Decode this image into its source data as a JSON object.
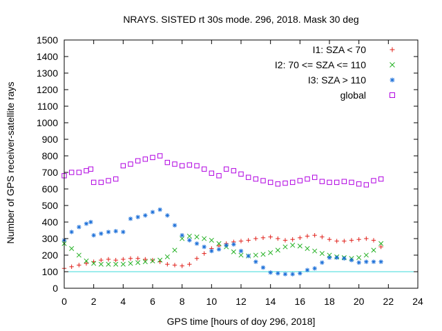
{
  "chart_data": {
    "type": "scatter",
    "title": "NRAYS. SISTED rt 30s mode. 296, 2018. Mask 30 deg",
    "xlabel": "GPS time [hours of doy 296, 2018]",
    "ylabel": "Number of GPS receiver-satellite rays",
    "xlim": [
      0,
      24
    ],
    "ylim": [
      0,
      1500
    ],
    "x_ticks": [
      0,
      2,
      4,
      6,
      8,
      10,
      12,
      14,
      16,
      18,
      20,
      22,
      24
    ],
    "y_ticks": [
      0,
      100,
      200,
      300,
      400,
      500,
      600,
      700,
      800,
      900,
      1000,
      1100,
      1200,
      1300,
      1400,
      1500
    ],
    "legend_position": "top-right",
    "reference_line": {
      "y": 100,
      "color": "#3ad9d9"
    },
    "series": [
      {
        "name": "I1: SZA < 70",
        "marker": "plus",
        "color": "#e0201a",
        "x": [
          0.0,
          0.5,
          1.0,
          1.5,
          2.0,
          2.5,
          3.0,
          3.5,
          4.0,
          4.5,
          5.0,
          5.5,
          6.0,
          6.5,
          7.0,
          7.5,
          8.0,
          8.5,
          9.0,
          9.5,
          10.0,
          10.5,
          11.0,
          11.5,
          12.0,
          12.5,
          13.0,
          13.5,
          14.0,
          14.5,
          15.0,
          15.5,
          16.0,
          16.5,
          17.0,
          17.5,
          18.0,
          18.5,
          19.0,
          19.5,
          20.0,
          20.5,
          21.0,
          21.5
        ],
        "y": [
          120,
          130,
          140,
          150,
          160,
          170,
          175,
          170,
          175,
          180,
          180,
          175,
          170,
          160,
          145,
          140,
          135,
          145,
          180,
          210,
          240,
          255,
          270,
          280,
          285,
          290,
          300,
          305,
          310,
          300,
          290,
          295,
          305,
          315,
          320,
          310,
          295,
          285,
          285,
          290,
          295,
          300,
          290,
          250
        ]
      },
      {
        "name": "I2: 70 <= SZA <= 110",
        "marker": "cross",
        "color": "#22b022",
        "x": [
          0.0,
          0.5,
          1.0,
          1.5,
          2.0,
          2.5,
          3.0,
          3.5,
          4.0,
          4.5,
          5.0,
          5.5,
          6.0,
          6.5,
          7.0,
          7.5,
          8.0,
          8.5,
          9.0,
          9.5,
          10.0,
          10.5,
          11.0,
          11.5,
          12.0,
          12.5,
          13.0,
          13.5,
          14.0,
          14.5,
          15.0,
          15.5,
          16.0,
          16.5,
          17.0,
          17.5,
          18.0,
          18.5,
          19.0,
          19.5,
          20.0,
          20.5,
          21.0,
          21.5
        ],
        "y": [
          270,
          240,
          200,
          165,
          150,
          145,
          145,
          145,
          145,
          150,
          155,
          160,
          165,
          170,
          190,
          230,
          300,
          315,
          310,
          300,
          290,
          270,
          250,
          220,
          200,
          195,
          200,
          205,
          215,
          230,
          250,
          260,
          255,
          240,
          225,
          210,
          200,
          190,
          185,
          180,
          185,
          200,
          230,
          270
        ]
      },
      {
        "name": "I3: SZA > 110",
        "marker": "star",
        "color": "#1a6ed8",
        "x": [
          0.0,
          0.5,
          1.0,
          1.5,
          1.8,
          2.0,
          2.5,
          3.0,
          3.5,
          4.0,
          4.5,
          5.0,
          5.5,
          6.0,
          6.5,
          7.0,
          7.5,
          8.0,
          8.5,
          9.0,
          9.5,
          10.0,
          10.5,
          11.0,
          11.5,
          12.0,
          12.5,
          13.0,
          13.5,
          14.0,
          14.5,
          15.0,
          15.5,
          16.0,
          16.5,
          17.0,
          17.5,
          18.0,
          18.5,
          19.0,
          19.5,
          20.0,
          20.5,
          21.0,
          21.5
        ],
        "y": [
          290,
          340,
          370,
          390,
          400,
          320,
          330,
          340,
          345,
          340,
          420,
          430,
          440,
          460,
          475,
          440,
          380,
          320,
          290,
          270,
          250,
          225,
          235,
          260,
          265,
          225,
          195,
          160,
          125,
          95,
          90,
          85,
          85,
          90,
          110,
          120,
          155,
          185,
          185,
          180,
          170,
          155,
          160,
          160,
          160
        ]
      },
      {
        "name": "global",
        "marker": "square",
        "color": "#b000e0",
        "x": [
          0.0,
          0.5,
          1.0,
          1.5,
          1.8,
          2.0,
          2.5,
          3.0,
          3.5,
          4.0,
          4.5,
          5.0,
          5.5,
          6.0,
          6.5,
          7.0,
          7.5,
          8.0,
          8.5,
          9.0,
          9.5,
          10.0,
          10.5,
          11.0,
          11.5,
          12.0,
          12.5,
          13.0,
          13.5,
          14.0,
          14.5,
          15.0,
          15.5,
          16.0,
          16.5,
          17.0,
          17.5,
          18.0,
          18.5,
          19.0,
          19.5,
          20.0,
          20.5,
          21.0,
          21.5
        ],
        "y": [
          680,
          700,
          700,
          710,
          720,
          640,
          640,
          650,
          660,
          740,
          750,
          770,
          780,
          790,
          800,
          760,
          750,
          740,
          745,
          740,
          720,
          695,
          680,
          720,
          710,
          690,
          670,
          660,
          650,
          640,
          630,
          635,
          640,
          650,
          660,
          670,
          645,
          640,
          640,
          645,
          640,
          630,
          625,
          650,
          660
        ]
      }
    ]
  }
}
